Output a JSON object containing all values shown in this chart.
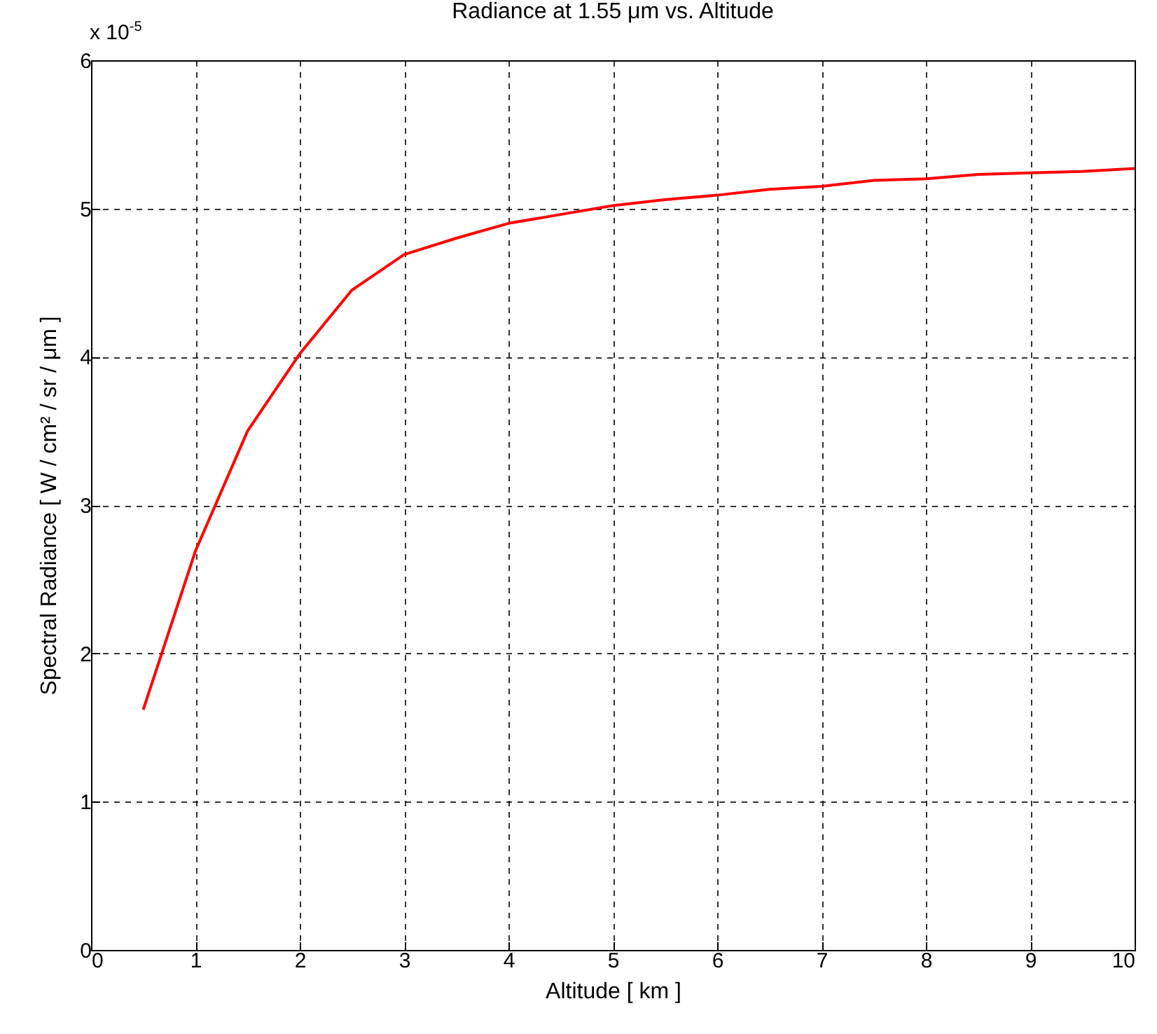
{
  "chart_data": {
    "type": "line",
    "title": "Radiance at 1.55 μm vs. Altitude",
    "xlabel": "Altitude  [ km ]",
    "ylabel": "Spectral Radiance  [ W / cm² / sr / μm ]",
    "annotations": [
      "x 10$^{-5}$"
    ],
    "x": [
      0.5,
      1,
      1.5,
      2,
      2.5,
      3,
      3.5,
      4,
      4.5,
      5,
      5.5,
      6,
      6.5,
      7,
      7.5,
      8,
      8.5,
      9,
      9.5,
      10
    ],
    "series": [
      {
        "color": "#ff0000",
        "values": [
          1.62,
          2.69,
          3.5,
          4.02,
          4.45,
          4.69,
          4.8,
          4.9,
          4.96,
          5.02,
          5.06,
          5.09,
          5.13,
          5.15,
          5.19,
          5.2,
          5.23,
          5.24,
          5.25,
          5.27
        ]
      }
    ],
    "xlim": [
      0,
      10
    ],
    "xticks": [
      0,
      1,
      2,
      3,
      4,
      5,
      6,
      7,
      8,
      9,
      10
    ],
    "ylim": [
      0,
      6
    ],
    "yticks": [
      0,
      1,
      2,
      3,
      4,
      5,
      6
    ],
    "grid": true,
    "line_style": "solid"
  }
}
